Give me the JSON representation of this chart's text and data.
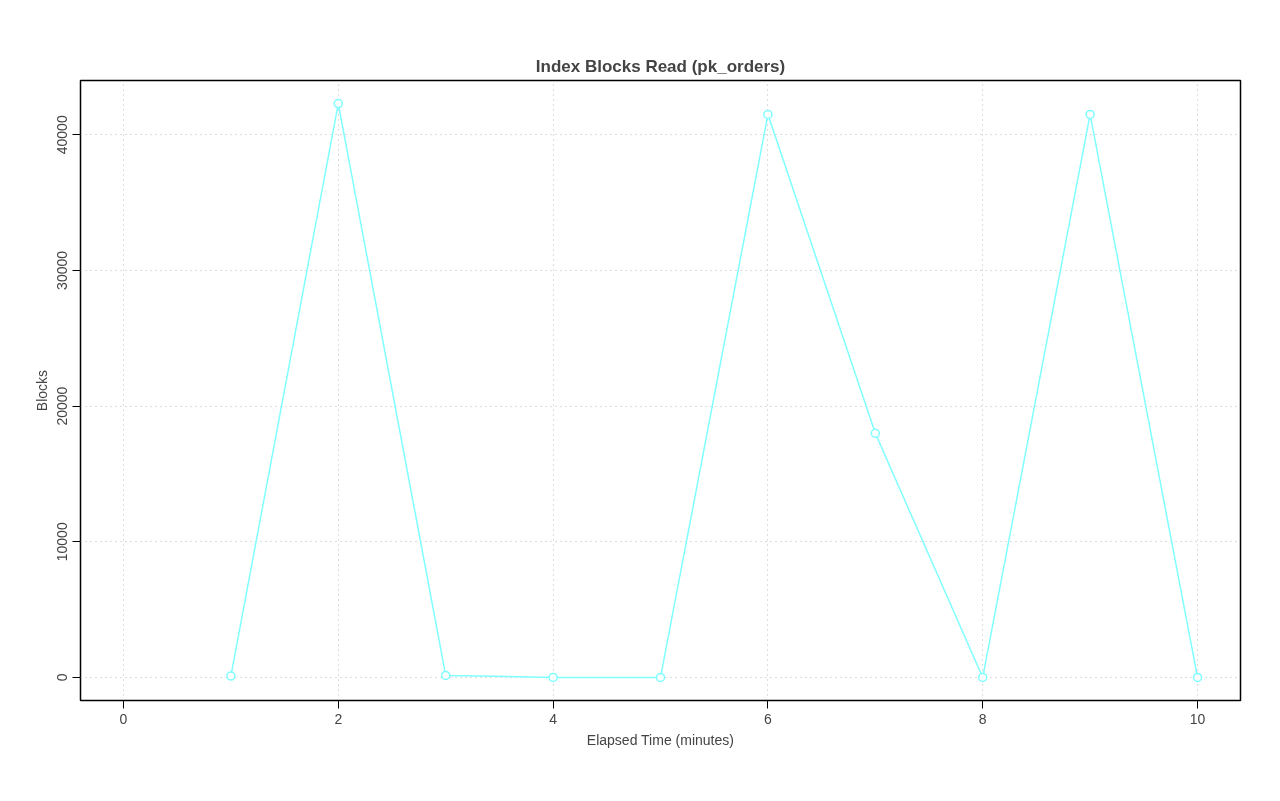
{
  "chart_data": {
    "type": "line",
    "title": "Index Blocks Read (pk_orders)",
    "xlabel": "Elapsed Time (minutes)",
    "ylabel": "Blocks",
    "x": [
      1,
      2,
      3,
      4,
      5,
      6,
      7,
      8,
      9,
      10
    ],
    "series": [
      {
        "color": "#80ffff",
        "values": [
          100,
          42300,
          150,
          0,
          0,
          41500,
          18000,
          0,
          41500,
          0
        ]
      }
    ],
    "xlim": [
      -0.4,
      10.4
    ],
    "xticks": [
      0,
      2,
      4,
      6,
      8,
      10
    ],
    "ylim": [
      -1700,
      44000
    ],
    "yticks": [
      0,
      10000,
      20000,
      30000,
      40000
    ],
    "grid": true,
    "marker": "circle",
    "line_style": "solid"
  }
}
